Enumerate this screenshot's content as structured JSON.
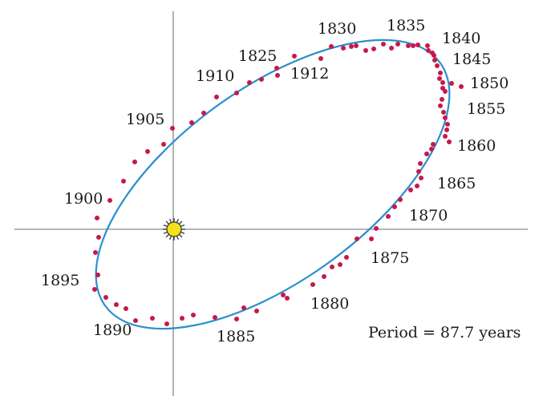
{
  "period_text": "Period = 87.7 years",
  "colors": {
    "orbit": "#2a8fd0",
    "dots": "#c8184a",
    "axes": "#8a8a8a",
    "sun_fill": "#f4e21a",
    "sun_rays": "#333333"
  },
  "year_labels": [
    {
      "id": "1830",
      "text": "1830"
    },
    {
      "id": "1835",
      "text": "1835"
    },
    {
      "id": "1840",
      "text": "1840"
    },
    {
      "id": "1845",
      "text": "1845"
    },
    {
      "id": "1850",
      "text": "1850"
    },
    {
      "id": "1855",
      "text": "1855"
    },
    {
      "id": "1860",
      "text": "1860"
    },
    {
      "id": "1865",
      "text": "1865"
    },
    {
      "id": "1870",
      "text": "1870"
    },
    {
      "id": "1875",
      "text": "1875"
    },
    {
      "id": "1880",
      "text": "1880"
    },
    {
      "id": "1885",
      "text": "1885"
    },
    {
      "id": "1890",
      "text": "1890"
    },
    {
      "id": "1895",
      "text": "1895"
    },
    {
      "id": "1900",
      "text": "1900"
    },
    {
      "id": "1905",
      "text": "1905"
    },
    {
      "id": "1910",
      "text": "1910"
    },
    {
      "id": "1825",
      "text": "1825"
    },
    {
      "id": "1912",
      "text": "1912"
    }
  ]
}
